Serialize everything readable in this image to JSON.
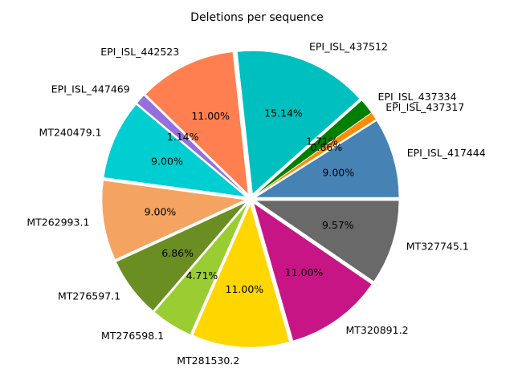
{
  "chart_data": {
    "type": "pie",
    "title": "Deletions per sequence",
    "slices": [
      {
        "label": "EPI_ISL_417444",
        "value": 9.0,
        "pct_label": "9.00%",
        "color": "#4682b4"
      },
      {
        "label": "EPI_ISL_437317",
        "value": 0.86,
        "pct_label": "0.86%",
        "color": "#ff8c00"
      },
      {
        "label": "EPI_ISL_437334",
        "value": 1.71,
        "pct_label": "1.71%",
        "color": "#008000"
      },
      {
        "label": "EPI_ISL_437512",
        "value": 15.14,
        "pct_label": "15.14%",
        "color": "#00bfbf"
      },
      {
        "label": "EPI_ISL_442523",
        "value": 11.0,
        "pct_label": "11.00%",
        "color": "#ff7f50"
      },
      {
        "label": "EPI_ISL_447469",
        "value": 1.14,
        "pct_label": "1.14%",
        "color": "#9370db"
      },
      {
        "label": "MT240479.1",
        "value": 9.0,
        "pct_label": "9.00%",
        "color": "#00ced1"
      },
      {
        "label": "MT262993.1",
        "value": 9.0,
        "pct_label": "9.00%",
        "color": "#f4a460"
      },
      {
        "label": "MT276597.1",
        "value": 6.86,
        "pct_label": "6.86%",
        "color": "#6b8e23"
      },
      {
        "label": "MT276598.1",
        "value": 4.71,
        "pct_label": "4.71%",
        "color": "#9acd32"
      },
      {
        "label": "MT281530.2",
        "value": 11.0,
        "pct_label": "11.00%",
        "color": "#ffd700"
      },
      {
        "label": "MT320891.2",
        "value": 11.0,
        "pct_label": "11.00%",
        "color": "#c71585"
      },
      {
        "label": "MT327745.1",
        "value": 9.57,
        "pct_label": "9.57%",
        "color": "#696969"
      }
    ],
    "start_angle": 0,
    "direction": "counterclockwise",
    "exploded": true,
    "legend": "none"
  }
}
